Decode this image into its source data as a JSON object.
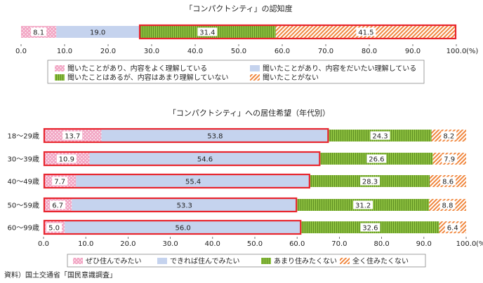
{
  "source_note": "資料）国土交通省「国民意識調査」",
  "chart_data": [
    {
      "type": "bar",
      "orientation": "horizontal",
      "stacked": true,
      "title": "「コンパクトシティ」の認知度",
      "categories": [
        ""
      ],
      "series": [
        {
          "name": "聞いたことがあり、内容をよく理解している",
          "values": [
            8.1
          ],
          "color": "#f2a6c4",
          "pattern": "dots"
        },
        {
          "name": "聞いたことがあり、内容をだいたい理解している",
          "values": [
            19.0
          ],
          "color": "#c5d3ee",
          "pattern": "solid"
        },
        {
          "name": "聞いたことはあるが、内容はあまり理解していない",
          "values": [
            31.4
          ],
          "color": "#8cbf3f",
          "pattern": "vlines"
        },
        {
          "name": "聞いたことがない",
          "values": [
            41.5
          ],
          "color": "#f0873e",
          "pattern": "diag"
        }
      ],
      "xlim": [
        0,
        100
      ],
      "xticks": [
        "0.0",
        "10.0",
        "20.0",
        "30.0",
        "40.0",
        "50.0",
        "60.0",
        "70.0",
        "80.0",
        "90.0",
        "100.0"
      ],
      "unit": "(%)",
      "legend_position": "bottom",
      "highlight_segments": [
        2,
        3
      ]
    },
    {
      "type": "bar",
      "orientation": "horizontal",
      "stacked": true,
      "title": "「コンパクトシティ」への居住希望（年代別）",
      "categories": [
        "18～29歳",
        "30～39歳",
        "40～49歳",
        "50～59歳",
        "60～99歳"
      ],
      "series": [
        {
          "name": "ぜひ住んでみたい",
          "values": [
            13.7,
            10.9,
            7.7,
            6.7,
            5.0
          ],
          "color": "#f2a6c4",
          "pattern": "dots"
        },
        {
          "name": "できれば住んでみたい",
          "values": [
            53.8,
            54.6,
            55.4,
            53.3,
            56.0
          ],
          "color": "#c5d3ee",
          "pattern": "solid"
        },
        {
          "name": "あまり住みたくない",
          "values": [
            24.3,
            26.6,
            28.3,
            31.2,
            32.6
          ],
          "color": "#8cbf3f",
          "pattern": "vlines"
        },
        {
          "name": "全く住みたくない",
          "values": [
            8.2,
            7.9,
            8.6,
            8.8,
            6.4
          ],
          "color": "#f0873e",
          "pattern": "diag"
        }
      ],
      "xlim": [
        0,
        100
      ],
      "xticks": [
        "0.0",
        "10.0",
        "20.0",
        "30.0",
        "40.0",
        "50.0",
        "60.0",
        "70.0",
        "80.0",
        "90.0",
        "100.0"
      ],
      "unit": "(%)",
      "legend_position": "bottom",
      "highlight_segments": [
        0,
        1
      ]
    }
  ]
}
